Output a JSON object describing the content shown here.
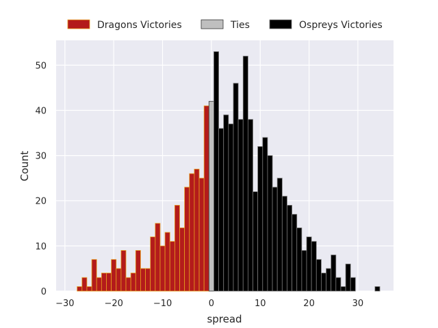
{
  "chart_data": {
    "type": "bar",
    "title": "",
    "xlabel": "spread",
    "ylabel": "Count",
    "xlim": [
      -31.8,
      37.3
    ],
    "ylim": [
      0,
      55.5
    ],
    "xticks": [
      -30,
      -20,
      -10,
      0,
      10,
      20,
      30
    ],
    "yticks": [
      0,
      10,
      20,
      30,
      40,
      50
    ],
    "grid": true,
    "legend_position": "top",
    "bin_width": 1,
    "series": [
      {
        "name": "Dragons Victories",
        "color": "#b31b1b",
        "edge_color": "#e8a020",
        "points": [
          {
            "x": -27,
            "y": 1
          },
          {
            "x": -26,
            "y": 3
          },
          {
            "x": -25,
            "y": 1
          },
          {
            "x": -24,
            "y": 7
          },
          {
            "x": -23,
            "y": 3
          },
          {
            "x": -22,
            "y": 4
          },
          {
            "x": -21,
            "y": 4
          },
          {
            "x": -20,
            "y": 7
          },
          {
            "x": -19,
            "y": 5
          },
          {
            "x": -18,
            "y": 9
          },
          {
            "x": -17,
            "y": 3
          },
          {
            "x": -16,
            "y": 4
          },
          {
            "x": -15,
            "y": 9
          },
          {
            "x": -14,
            "y": 5
          },
          {
            "x": -13,
            "y": 5
          },
          {
            "x": -12,
            "y": 12
          },
          {
            "x": -11,
            "y": 15
          },
          {
            "x": -10,
            "y": 10
          },
          {
            "x": -9,
            "y": 13
          },
          {
            "x": -8,
            "y": 11
          },
          {
            "x": -7,
            "y": 19
          },
          {
            "x": -6,
            "y": 14
          },
          {
            "x": -5,
            "y": 23
          },
          {
            "x": -4,
            "y": 26
          },
          {
            "x": -3,
            "y": 27
          },
          {
            "x": -2,
            "y": 25
          },
          {
            "x": -1,
            "y": 41
          }
        ]
      },
      {
        "name": "Ties",
        "color": "#bfbfbf",
        "edge_color": "#333333",
        "points": [
          {
            "x": 0,
            "y": 42
          }
        ]
      },
      {
        "name": "Ospreys Victories",
        "color": "#000000",
        "edge_color": "#7a7a7a",
        "points": [
          {
            "x": 1,
            "y": 53
          },
          {
            "x": 2,
            "y": 36
          },
          {
            "x": 3,
            "y": 39
          },
          {
            "x": 4,
            "y": 37
          },
          {
            "x": 5,
            "y": 46
          },
          {
            "x": 6,
            "y": 38
          },
          {
            "x": 7,
            "y": 52
          },
          {
            "x": 8,
            "y": 38
          },
          {
            "x": 9,
            "y": 22
          },
          {
            "x": 10,
            "y": 32
          },
          {
            "x": 11,
            "y": 34
          },
          {
            "x": 12,
            "y": 30
          },
          {
            "x": 13,
            "y": 23
          },
          {
            "x": 14,
            "y": 25
          },
          {
            "x": 15,
            "y": 21
          },
          {
            "x": 16,
            "y": 19
          },
          {
            "x": 17,
            "y": 17
          },
          {
            "x": 18,
            "y": 14
          },
          {
            "x": 19,
            "y": 9
          },
          {
            "x": 20,
            "y": 12
          },
          {
            "x": 21,
            "y": 11
          },
          {
            "x": 22,
            "y": 7
          },
          {
            "x": 23,
            "y": 4
          },
          {
            "x": 24,
            "y": 5
          },
          {
            "x": 25,
            "y": 8
          },
          {
            "x": 26,
            "y": 3
          },
          {
            "x": 27,
            "y": 1
          },
          {
            "x": 28,
            "y": 6
          },
          {
            "x": 29,
            "y": 3
          },
          {
            "x": 34,
            "y": 1
          }
        ]
      }
    ]
  }
}
